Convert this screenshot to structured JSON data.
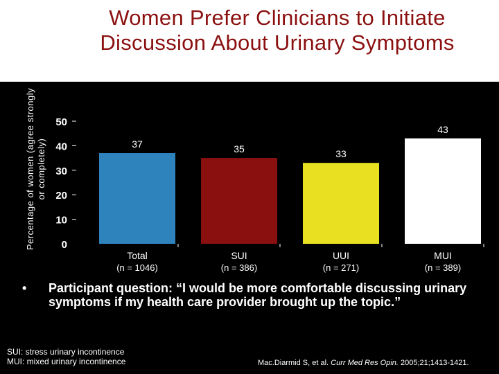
{
  "colors": {
    "title": "#8b1010",
    "background": "#000000",
    "header_background": "#ffffff",
    "bar_total": "#2f83bd",
    "bar_sui": "#8a1010",
    "bar_uui": "#e8e020",
    "bar_mui": "#ffffff"
  },
  "title": "Women Prefer Clinicians to Initiate Discussion About Urinary Symptoms",
  "chart_data": {
    "type": "bar",
    "title": "Women Prefer Clinicians to Initiate Discussion About Urinary Symptoms",
    "ylabel": "Percentage of women (agree strongly or completely)",
    "xlabel": "",
    "ylim": [
      0,
      50
    ],
    "yticks": [
      "0",
      "10",
      "20",
      "30",
      "40",
      "50"
    ],
    "categories": [
      "Total",
      "SUI",
      "UUI",
      "MUI"
    ],
    "sublabels": [
      "(n = 1046)",
      "(n = 386)",
      "(n = 271)",
      "(n = 389)"
    ],
    "values": [
      37,
      35,
      33,
      43
    ],
    "grid": false
  },
  "bullet": {
    "symbol": "•",
    "text": "Participant question: “I would be more comfortable discussing urinary symptoms if my health care provider brought up the topic.”"
  },
  "footnotes": {
    "sui": "SUI: stress urinary incontinence",
    "mui": "MUI: mixed urinary incontinence"
  },
  "citation": {
    "authors": "Mac.Diarmid S, et al.",
    "journal": "Curr Med Res Opin.",
    "details": "2005;21;1413-1421."
  }
}
